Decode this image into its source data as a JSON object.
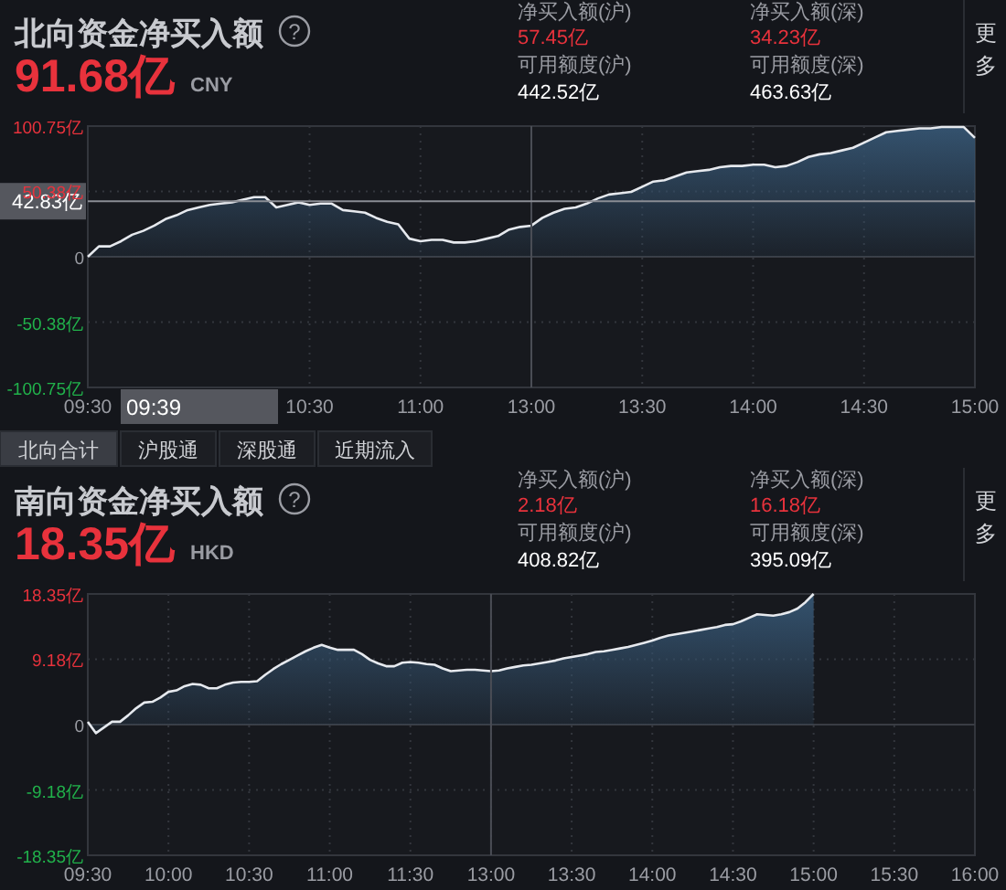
{
  "chart_data": [
    {
      "type": "area",
      "title": "北向资金净买入额",
      "annotations": [
        "91.68亿",
        "CNY",
        "净买入额(沪)",
        "57.45亿",
        "净买入额(深)",
        "34.23亿",
        "可用额度(沪)",
        "442.52亿",
        "可用额度(深)",
        "463.63亿",
        "更多",
        "北向合计",
        "沪股通",
        "深股通",
        "近期流入",
        "?",
        "09:39"
      ],
      "categories": [
        "09:30",
        null,
        null,
        null,
        null,
        null,
        null,
        null,
        null,
        null,
        null,
        null,
        null,
        null,
        null,
        null,
        null,
        null,
        null,
        null,
        "10:30",
        null,
        null,
        null,
        null,
        null,
        null,
        null,
        null,
        null,
        "11:00",
        null,
        null,
        null,
        null,
        null,
        null,
        null,
        null,
        null,
        "13:00",
        null,
        null,
        null,
        null,
        null,
        null,
        null,
        null,
        null,
        "13:30",
        null,
        null,
        null,
        null,
        null,
        null,
        null,
        null,
        null,
        "14:00",
        null,
        null,
        null,
        null,
        null,
        null,
        null,
        null,
        null,
        "14:30",
        null,
        null,
        null,
        null,
        null,
        null,
        null,
        null,
        null,
        "15:00"
      ],
      "series": [
        {
          "color": "#34526e",
          "values": [
            0,
            8,
            8,
            12,
            17,
            20,
            24,
            29,
            32,
            36,
            38,
            40,
            41,
            42,
            44,
            46,
            46,
            38,
            40,
            42,
            40,
            41,
            41,
            36,
            35,
            34,
            30,
            27,
            25,
            14,
            12,
            13,
            13,
            11,
            11,
            12,
            14,
            16,
            21,
            23,
            24,
            30,
            34,
            37,
            38,
            41,
            45,
            48,
            49,
            50,
            54,
            58,
            59,
            62,
            65,
            66,
            67,
            69,
            70,
            70,
            71,
            71,
            69,
            70,
            73,
            77,
            79,
            80,
            82,
            84,
            88,
            92,
            96,
            97,
            98,
            99,
            99,
            100,
            100,
            100,
            91.68
          ]
        }
      ],
      "ylim": [
        -100.75,
        100.75
      ],
      "yticks": [
        {
          "value": -100.75,
          "label": "-100.75亿"
        },
        {
          "value": -50.38,
          "label": "-50.38亿"
        },
        0,
        {
          "value": 50.38,
          "label": "50.38亿"
        },
        {
          "value": 100.75,
          "label": "100.75亿"
        }
      ],
      "grid": true,
      "ref_lines": [
        {
          "axis": "x",
          "value": "13:00",
          "color": "#4a4d55"
        },
        {
          "axis": "y",
          "value": 42.83,
          "label": "42.83亿",
          "color": "#8a8d94"
        }
      ]
    },
    {
      "type": "area",
      "title": "南向资金净买入额",
      "annotations": [
        "18.35亿",
        "HKD",
        "净买入额(沪)",
        "2.18亿",
        "净买入额(深)",
        "16.18亿",
        "可用额度(沪)",
        "408.82亿",
        "可用额度(深)",
        "395.09亿",
        "更多",
        null,
        null,
        null,
        null,
        "?"
      ],
      "categories": [
        "09:30",
        null,
        null,
        null,
        null,
        null,
        null,
        null,
        null,
        null,
        "10:00",
        null,
        null,
        null,
        null,
        null,
        null,
        null,
        null,
        null,
        "10:30",
        null,
        null,
        null,
        null,
        null,
        null,
        null,
        null,
        null,
        "11:00",
        null,
        null,
        null,
        null,
        null,
        null,
        null,
        null,
        null,
        "11:30",
        null,
        null,
        null,
        null,
        null,
        null,
        null,
        null,
        null,
        "13:00",
        null,
        null,
        null,
        null,
        null,
        null,
        null,
        null,
        null,
        "13:30",
        null,
        null,
        null,
        null,
        null,
        null,
        null,
        null,
        null,
        "14:00",
        null,
        null,
        null,
        null,
        null,
        null,
        null,
        null,
        null,
        "14:30",
        null,
        null,
        null,
        null,
        null,
        null,
        null,
        null,
        null,
        "15:00",
        null,
        null,
        null,
        null,
        null,
        null,
        null,
        null,
        null,
        "15:30",
        null,
        null,
        null,
        null,
        null,
        null,
        null,
        null,
        null,
        "16:00"
      ],
      "series": [
        {
          "color": "#34526e",
          "values": [
            0.4,
            -1.2,
            -0.4,
            0.4,
            0.4,
            1.3,
            2.3,
            3.1,
            3.2,
            3.8,
            4.6,
            4.8,
            5.4,
            5.7,
            5.6,
            5.1,
            5.1,
            5.6,
            5.9,
            6,
            6,
            6.1,
            7,
            7.8,
            8.5,
            9.1,
            9.7,
            10.3,
            10.8,
            11.2,
            10.8,
            10.5,
            10.5,
            10.5,
            9.9,
            9.1,
            8.6,
            8.2,
            8.2,
            8.7,
            8.8,
            8.7,
            8.5,
            8.4,
            7.9,
            7.5,
            7.6,
            7.7,
            7.7,
            7.6,
            7.5,
            7.6,
            7.9,
            8.1,
            8.3,
            8.4,
            8.6,
            8.8,
            9,
            9.3,
            9.5,
            9.7,
            9.9,
            10.2,
            10.3,
            10.5,
            10.7,
            10.9,
            11.2,
            11.5,
            11.8,
            12.2,
            12.5,
            12.7,
            12.9,
            13.1,
            13.3,
            13.5,
            13.7,
            14,
            14.1,
            14.5,
            15,
            15.5,
            15.4,
            15.3,
            15.5,
            15.8,
            16.3,
            17.2,
            18.35,
            null,
            null,
            null,
            null,
            null,
            null,
            null,
            null,
            null,
            null,
            null,
            null,
            null,
            null,
            null,
            null,
            null,
            null,
            null,
            null
          ]
        }
      ],
      "ylim": [
        -18.35,
        18.35
      ],
      "yticks": [
        {
          "value": -18.35,
          "label": "-18.35亿"
        },
        {
          "value": -9.18,
          "label": "-9.18亿"
        },
        0,
        {
          "value": 9.18,
          "label": "9.18亿"
        },
        {
          "value": 18.35,
          "label": "18.35亿"
        }
      ],
      "grid": true,
      "ref_lines": [
        {
          "axis": "x",
          "value": "13:00",
          "color": "#4a4d55"
        }
      ]
    }
  ]
}
